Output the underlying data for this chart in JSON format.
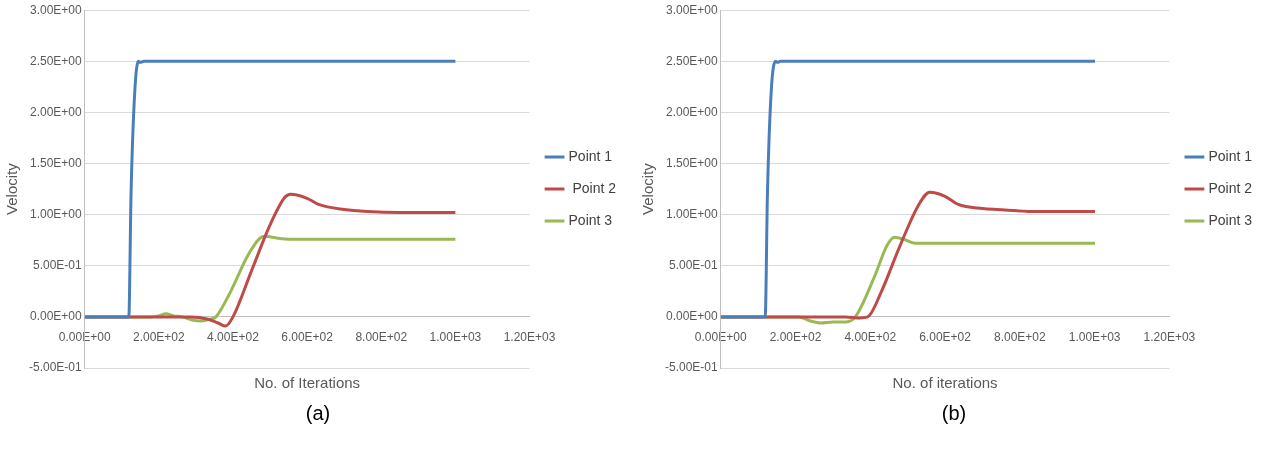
{
  "chart_data": [
    {
      "type": "line",
      "xlabel": "No. of Iterations",
      "ylabel": "Velocity",
      "annotations": [
        "(a)"
      ],
      "grid": "y",
      "legend": "right",
      "marker": "none",
      "line_style": "solid",
      "xlim": [
        0,
        1200
      ],
      "xticks": [
        {
          "value": 0,
          "label": "0.00E+00"
        },
        {
          "value": 200,
          "label": "2.00E+02"
        },
        {
          "value": 400,
          "label": "4.00E+02"
        },
        {
          "value": 600,
          "label": "6.00E+02"
        },
        {
          "value": 800,
          "label": "8.00E+02"
        },
        {
          "value": 1000,
          "label": "1.00E+03"
        },
        {
          "value": 1200,
          "label": "1.20E+03"
        }
      ],
      "ylim": [
        -0.5,
        3
      ],
      "yticks": [
        {
          "value": -0.5,
          "label": "-5.00E-01"
        },
        {
          "value": 0,
          "label": "0.00E+00"
        },
        {
          "value": 0.5,
          "label": "5.00E-01"
        },
        {
          "value": 1,
          "label": "1.00E+00"
        },
        {
          "value": 1.5,
          "label": "1.50E+00"
        },
        {
          "value": 2,
          "label": "2.00E+00"
        },
        {
          "value": 2.5,
          "label": "2.50E+00"
        },
        {
          "value": 3,
          "label": "3.00E+00"
        }
      ],
      "series": [
        {
          "name": "Point 1",
          "color": "#4a7ebb",
          "x": [
            0,
            119,
            125,
            135,
            145,
            150,
            160,
            1000
          ],
          "values": [
            0,
            0,
            1.2,
            2.2,
            2.5,
            2.49,
            2.5,
            2.5
          ]
        },
        {
          "name": " Point 2",
          "color": "#be4b48",
          "x": [
            0,
            288,
            330,
            360,
            380,
            400,
            450,
            500,
            540,
            556,
            600,
            631,
            700,
            763,
            850,
            1000
          ],
          "values": [
            0,
            0,
            -0.02,
            -0.06,
            -0.09,
            0,
            0.45,
            0.9,
            1.17,
            1.2,
            1.16,
            1.1,
            1.05,
            1.03,
            1.02,
            1.02
          ]
        },
        {
          "name": "Point 3",
          "color": "#98b954",
          "x": [
            0,
            176,
            200,
            219,
            240,
            262,
            290,
            314,
            340,
            354,
            394,
            440,
            473,
            486,
            520,
            552,
            700,
            1000
          ],
          "values": [
            0,
            0,
            0.01,
            0.03,
            0.01,
            0,
            -0.03,
            -0.04,
            -0.02,
            0,
            0.25,
            0.6,
            0.77,
            0.79,
            0.77,
            0.76,
            0.76,
            0.76
          ]
        }
      ]
    },
    {
      "type": "line",
      "xlabel": "No. of iterations",
      "ylabel": "Velocity",
      "annotations": [
        "(b)"
      ],
      "grid": "y",
      "legend": "right",
      "marker": "none",
      "line_style": "solid",
      "xlim": [
        0,
        1200
      ],
      "xticks": [
        {
          "value": 0,
          "label": "0.00E+00"
        },
        {
          "value": 200,
          "label": "2.00E+02"
        },
        {
          "value": 400,
          "label": "4.00E+02"
        },
        {
          "value": 600,
          "label": "6.00E+02"
        },
        {
          "value": 800,
          "label": "8.00E+02"
        },
        {
          "value": 1000,
          "label": "1.00E+03"
        },
        {
          "value": 1200,
          "label": "1.20E+03"
        }
      ],
      "ylim": [
        -0.5,
        3
      ],
      "yticks": [
        {
          "value": -0.5,
          "label": "-5.00E-01"
        },
        {
          "value": 0,
          "label": "0.00E+00"
        },
        {
          "value": 0.5,
          "label": "5.00E-01"
        },
        {
          "value": 1,
          "label": "1.00E+00"
        },
        {
          "value": 1.5,
          "label": "1.50E+00"
        },
        {
          "value": 2,
          "label": "2.00E+00"
        },
        {
          "value": 2.5,
          "label": "2.50E+00"
        },
        {
          "value": 3,
          "label": "3.00E+00"
        }
      ],
      "series": [
        {
          "name": "Point 1",
          "color": "#4a7ebb",
          "x": [
            0,
            119,
            125,
            135,
            147,
            152,
            160,
            1001
          ],
          "values": [
            0,
            0,
            1.2,
            2.2,
            2.5,
            2.49,
            2.5,
            2.5
          ]
        },
        {
          "name": "Point 2",
          "color": "#be4b48",
          "x": [
            0,
            334,
            373,
            393,
            430,
            480,
            530,
            559,
            600,
            635,
            700,
            740,
            850,
            1001
          ],
          "values": [
            0,
            0,
            -0.01,
            0,
            0.25,
            0.7,
            1.1,
            1.22,
            1.18,
            1.1,
            1.06,
            1.05,
            1.03,
            1.03
          ]
        },
        {
          "name": "Point 3",
          "color": "#98b954",
          "x": [
            0,
            209,
            240,
            268,
            300,
            334,
            360,
            412,
            445,
            465,
            490,
            520,
            543,
            700,
            1001
          ],
          "values": [
            0,
            0,
            -0.04,
            -0.06,
            -0.05,
            -0.05,
            0,
            0.4,
            0.7,
            0.78,
            0.76,
            0.72,
            0.72,
            0.72,
            0.72
          ]
        }
      ]
    }
  ]
}
